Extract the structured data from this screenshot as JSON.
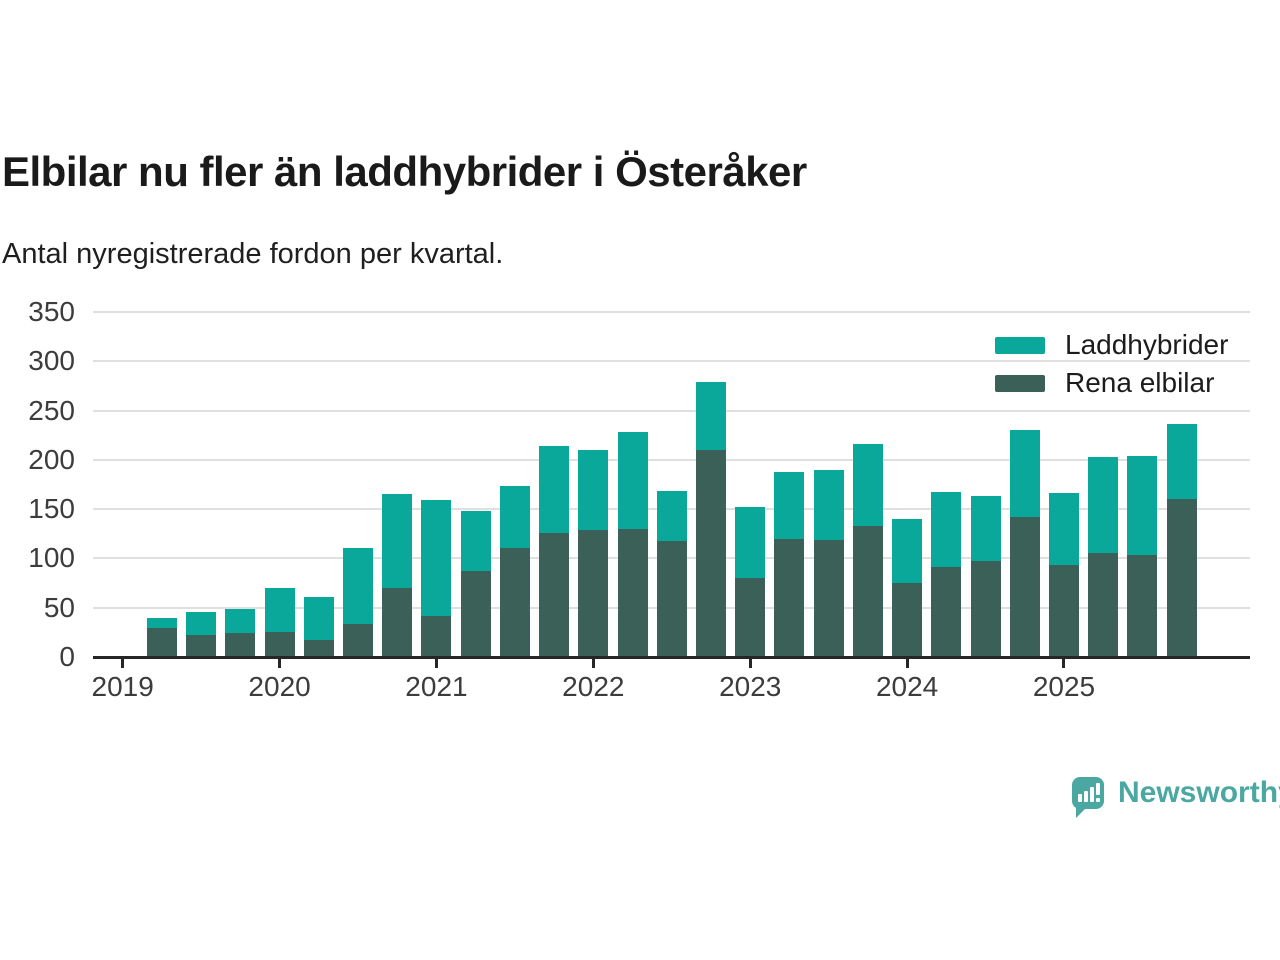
{
  "header": {
    "title": "Elbilar nu fler än laddhybrider i Österåker",
    "subtitle": "Antal nyregistrerade fordon per kvartal."
  },
  "legend": {
    "items": [
      {
        "label": "Laddhybrider",
        "color": "#0aa79b"
      },
      {
        "label": "Rena elbilar",
        "color": "#3a6058"
      }
    ]
  },
  "footer": {
    "brand": "Newsworthy",
    "brand_color": "#4aa7a2"
  },
  "chart_data": {
    "type": "bar",
    "stacked": true,
    "title": "Elbilar nu fler än laddhybrider i Österåker",
    "subtitle": "Antal nyregistrerade fordon per kvartal.",
    "categories": [
      "2019 Q2",
      "2019 Q3",
      "2019 Q4",
      "2020 Q1",
      "2020 Q2",
      "2020 Q3",
      "2020 Q4",
      "2021 Q1",
      "2021 Q2",
      "2021 Q3",
      "2021 Q4",
      "2022 Q1",
      "2022 Q2",
      "2022 Q3",
      "2022 Q4",
      "2023 Q1",
      "2023 Q2",
      "2023 Q3",
      "2023 Q4",
      "2024 Q1",
      "2024 Q2",
      "2024 Q3",
      "2024 Q4",
      "2025 Q1",
      "2025 Q2",
      "2025 Q3",
      "2025 Q4"
    ],
    "series": [
      {
        "name": "Laddhybrider",
        "color": "#0aa79b",
        "values": [
          11,
          24,
          25,
          45,
          44,
          78,
          95,
          117,
          61,
          62,
          88,
          81,
          98,
          50,
          69,
          72,
          68,
          71,
          83,
          65,
          76,
          66,
          88,
          73,
          98,
          101,
          76
        ]
      },
      {
        "name": "Rena elbilar",
        "color": "#3a6058",
        "values": [
          29,
          22,
          24,
          25,
          17,
          33,
          70,
          42,
          87,
          111,
          126,
          129,
          130,
          118,
          210,
          80,
          120,
          119,
          133,
          75,
          91,
          97,
          142,
          93,
          105,
          103,
          160
        ]
      }
    ],
    "totals": [
      40,
      46,
      49,
      70,
      61,
      111,
      165,
      159,
      148,
      173,
      214,
      210,
      228,
      168,
      279,
      152,
      188,
      190,
      216,
      140,
      167,
      163,
      230,
      166,
      203,
      204,
      236
    ],
    "ylim": [
      0,
      350
    ],
    "yticks": [
      0,
      50,
      100,
      150,
      200,
      250,
      300,
      350
    ],
    "xtick_years": [
      "2019",
      "2020",
      "2021",
      "2022",
      "2023",
      "2024",
      "2025"
    ],
    "grid": "horizontal",
    "legend_position": "top-right"
  }
}
